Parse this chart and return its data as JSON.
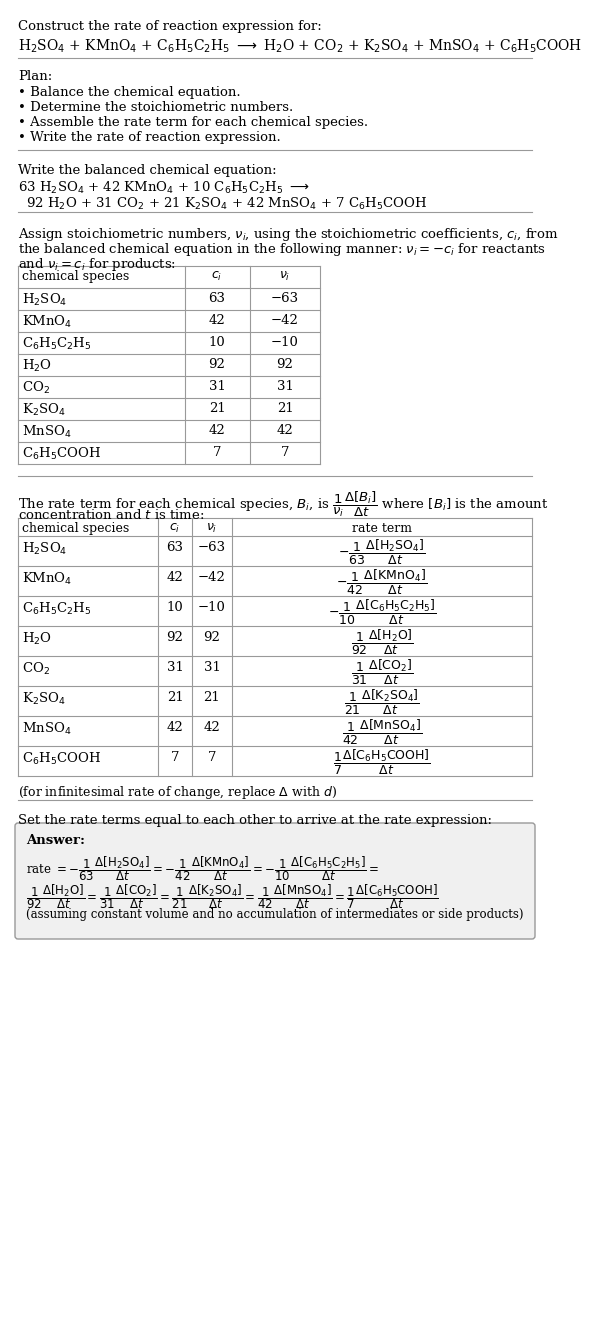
{
  "title_line": "Construct the rate of reaction expression for:",
  "reaction_unbalanced": "H$_2$SO$_4$ + KMnO$_4$ + C$_6$H$_5$C$_2$H$_5$ $\\longrightarrow$ H$_2$O + CO$_2$ + K$_2$SO$_4$ + MnSO$_4$ + C$_6$H$_5$COOH",
  "plan_header": "Plan:",
  "plan_items": [
    "• Balance the chemical equation.",
    "• Determine the stoichiometric numbers.",
    "• Assemble the rate term for each chemical species.",
    "• Write the rate of reaction expression."
  ],
  "balanced_header": "Write the balanced chemical equation:",
  "balanced_line1": "63 H$_2$SO$_4$ + 42 KMnO$_4$ + 10 C$_6$H$_5$C$_2$H$_5$ $\\longrightarrow$",
  "balanced_line2": "  92 H$_2$O + 31 CO$_2$ + 21 K$_2$SO$_4$ + 42 MnSO$_4$ + 7 C$_6$H$_5$COOH",
  "stoich_intro1": "Assign stoichiometric numbers, $\\nu_i$, using the stoichiometric coefficients, $c_i$, from",
  "stoich_intro2": "the balanced chemical equation in the following manner: $\\nu_i = -c_i$ for reactants",
  "stoich_intro3": "and $\\nu_i = c_i$ for products:",
  "table1_headers": [
    "chemical species",
    "$c_i$",
    "$\\nu_i$"
  ],
  "table1_data": [
    [
      "H$_2$SO$_4$",
      "63",
      "−63"
    ],
    [
      "KMnO$_4$",
      "42",
      "−42"
    ],
    [
      "C$_6$H$_5$C$_2$H$_5$",
      "10",
      "−10"
    ],
    [
      "H$_2$O",
      "92",
      "92"
    ],
    [
      "CO$_2$",
      "31",
      "31"
    ],
    [
      "K$_2$SO$_4$",
      "21",
      "21"
    ],
    [
      "MnSO$_4$",
      "42",
      "42"
    ],
    [
      "C$_6$H$_5$COOH",
      "7",
      "7"
    ]
  ],
  "rate_intro1": "The rate term for each chemical species, $B_i$, is $\\dfrac{1}{\\nu_i}\\dfrac{\\Delta[B_i]}{\\Delta t}$ where $[B_i]$ is the amount",
  "rate_intro2": "concentration and $t$ is time:",
  "table2_headers": [
    "chemical species",
    "$c_i$",
    "$\\nu_i$",
    "rate term"
  ],
  "table2_data": [
    [
      "H$_2$SO$_4$",
      "63",
      "−63",
      "$-\\dfrac{1}{63}\\dfrac{\\Delta[\\mathrm{H_2SO_4}]}{\\Delta t}$"
    ],
    [
      "KMnO$_4$",
      "42",
      "−42",
      "$-\\dfrac{1}{42}\\dfrac{\\Delta[\\mathrm{KMnO_4}]}{\\Delta t}$"
    ],
    [
      "C$_6$H$_5$C$_2$H$_5$",
      "10",
      "−10",
      "$-\\dfrac{1}{10}\\dfrac{\\Delta[\\mathrm{C_6H_5C_2H_5}]}{\\Delta t}$"
    ],
    [
      "H$_2$O",
      "92",
      "92",
      "$\\dfrac{1}{92}\\dfrac{\\Delta[\\mathrm{H_2O}]}{\\Delta t}$"
    ],
    [
      "CO$_2$",
      "31",
      "31",
      "$\\dfrac{1}{31}\\dfrac{\\Delta[\\mathrm{CO_2}]}{\\Delta t}$"
    ],
    [
      "K$_2$SO$_4$",
      "21",
      "21",
      "$\\dfrac{1}{21}\\dfrac{\\Delta[\\mathrm{K_2SO_4}]}{\\Delta t}$"
    ],
    [
      "MnSO$_4$",
      "42",
      "42",
      "$\\dfrac{1}{42}\\dfrac{\\Delta[\\mathrm{MnSO_4}]}{\\Delta t}$"
    ],
    [
      "C$_6$H$_5$COOH",
      "7",
      "7",
      "$\\dfrac{1}{7}\\dfrac{\\Delta[\\mathrm{C_6H_5COOH}]}{\\Delta t}$"
    ]
  ],
  "infinitesimal_note": "(for infinitesimal rate of change, replace $\\Delta$ with $d$)",
  "set_rate_text": "Set the rate terms equal to each other to arrive at the rate expression:",
  "answer_label": "Answer:",
  "answer_line1a": "rate $= -\\dfrac{1}{63}\\dfrac{\\Delta[\\mathrm{H_2SO_4}]}{\\Delta t} = -\\dfrac{1}{42}\\dfrac{\\Delta[\\mathrm{KMnO_4}]}{\\Delta t} = -\\dfrac{1}{10}\\dfrac{\\Delta[\\mathrm{C_6H_5C_2H_5}]}{\\Delta t} =$",
  "answer_line2a": "$\\dfrac{1}{92}\\dfrac{\\Delta[\\mathrm{H_2O}]}{\\Delta t} = \\dfrac{1}{31}\\dfrac{\\Delta[\\mathrm{CO_2}]}{\\Delta t} = \\dfrac{1}{21}\\dfrac{\\Delta[\\mathrm{K_2SO_4}]}{\\Delta t} = \\dfrac{1}{42}\\dfrac{\\Delta[\\mathrm{MnSO_4}]}{\\Delta t} = \\dfrac{1}{7}\\dfrac{\\Delta[\\mathrm{C_6H_5COOH}]}{\\Delta t}$",
  "answer_footnote": "(assuming constant volume and no accumulation of intermediates or side products)",
  "bg_color": "#ffffff",
  "line_color": "#999999",
  "answer_box_color": "#f0f0f0",
  "answer_box_edge": "#999999"
}
